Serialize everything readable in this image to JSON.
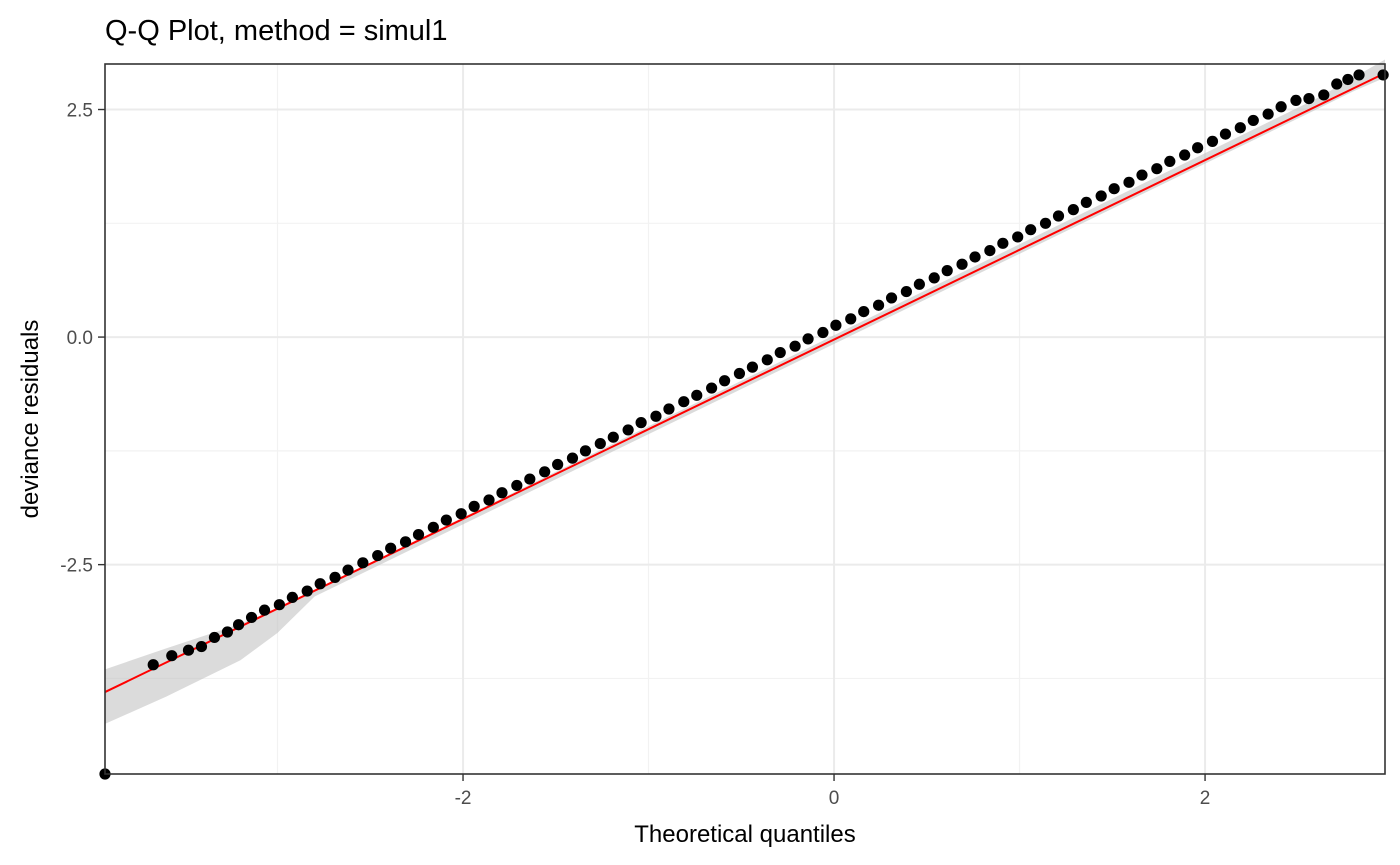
{
  "chart_data": {
    "type": "scatter",
    "title": "Q-Q Plot, method = simul1",
    "xlabel": "Theoretical quantiles",
    "ylabel": "deviance residuals",
    "xlim": [
      -3.93,
      2.97
    ],
    "ylim": [
      -4.8,
      3.0
    ],
    "x_ticks": [
      -2,
      0,
      2
    ],
    "x_tick_labels": [
      "-2",
      "0",
      "2"
    ],
    "y_ticks": [
      -2.5,
      0.0,
      2.5
    ],
    "y_tick_labels": [
      "-2.5",
      "0.0",
      "2.5"
    ],
    "grid": true,
    "legend": "none",
    "reference_line": {
      "color": "#ff0000",
      "x": [
        -3.93,
        2.97
      ],
      "y": [
        -3.9,
        2.9
      ]
    },
    "envelope": {
      "color": "#bdbdbd",
      "x": [
        -3.93,
        -3.6,
        -3.2,
        -3.0,
        -2.8,
        2.6,
        2.8,
        2.97
      ],
      "lower": [
        -4.25,
        -3.95,
        -3.55,
        -3.25,
        -2.85,
        2.5,
        2.7,
        2.85
      ],
      "upper": [
        -3.65,
        -3.42,
        -3.15,
        -2.98,
        -2.78,
        2.62,
        2.85,
        3.05
      ]
    },
    "points": {
      "color": "#000000",
      "x": [
        -3.93,
        -3.67,
        -3.57,
        -3.48,
        -3.41,
        -3.34,
        -3.27,
        -3.21,
        -3.14,
        -3.07,
        -2.99,
        -2.92,
        -2.84,
        -2.77,
        -2.69,
        -2.62,
        -2.54,
        -2.46,
        -2.39,
        -2.31,
        -2.24,
        -2.16,
        -2.09,
        -2.01,
        -1.94,
        -1.86,
        -1.79,
        -1.71,
        -1.64,
        -1.56,
        -1.49,
        -1.41,
        -1.34,
        -1.26,
        -1.19,
        -1.11,
        -1.04,
        -0.96,
        -0.89,
        -0.81,
        -0.74,
        -0.66,
        -0.59,
        -0.51,
        -0.44,
        -0.36,
        -0.29,
        -0.21,
        -0.14,
        -0.06,
        0.01,
        0.09,
        0.16,
        0.24,
        0.31,
        0.39,
        0.46,
        0.54,
        0.61,
        0.69,
        0.76,
        0.84,
        0.91,
        0.99,
        1.06,
        1.14,
        1.21,
        1.29,
        1.36,
        1.44,
        1.51,
        1.59,
        1.66,
        1.74,
        1.81,
        1.89,
        1.96,
        2.04,
        2.11,
        2.19,
        2.26,
        2.34,
        2.41,
        2.49,
        2.56,
        2.64,
        2.71,
        2.77,
        2.83,
        2.96
      ],
      "y": [
        -4.8,
        -3.6,
        -3.5,
        -3.44,
        -3.4,
        -3.3,
        -3.24,
        -3.16,
        -3.08,
        -3.0,
        -2.94,
        -2.86,
        -2.79,
        -2.71,
        -2.64,
        -2.56,
        -2.48,
        -2.4,
        -2.32,
        -2.25,
        -2.17,
        -2.09,
        -2.01,
        -1.94,
        -1.86,
        -1.79,
        -1.71,
        -1.63,
        -1.56,
        -1.48,
        -1.4,
        -1.33,
        -1.25,
        -1.17,
        -1.1,
        -1.02,
        -0.94,
        -0.87,
        -0.79,
        -0.71,
        -0.64,
        -0.56,
        -0.48,
        -0.4,
        -0.33,
        -0.25,
        -0.17,
        -0.1,
        -0.02,
        0.05,
        0.13,
        0.2,
        0.28,
        0.35,
        0.43,
        0.5,
        0.58,
        0.65,
        0.73,
        0.8,
        0.88,
        0.95,
        1.03,
        1.1,
        1.18,
        1.25,
        1.33,
        1.4,
        1.48,
        1.55,
        1.63,
        1.7,
        1.78,
        1.85,
        1.93,
        2.0,
        2.08,
        2.15,
        2.23,
        2.3,
        2.38,
        2.45,
        2.53,
        2.6,
        2.62,
        2.66,
        2.78,
        2.83,
        2.88,
        2.88
      ]
    }
  }
}
